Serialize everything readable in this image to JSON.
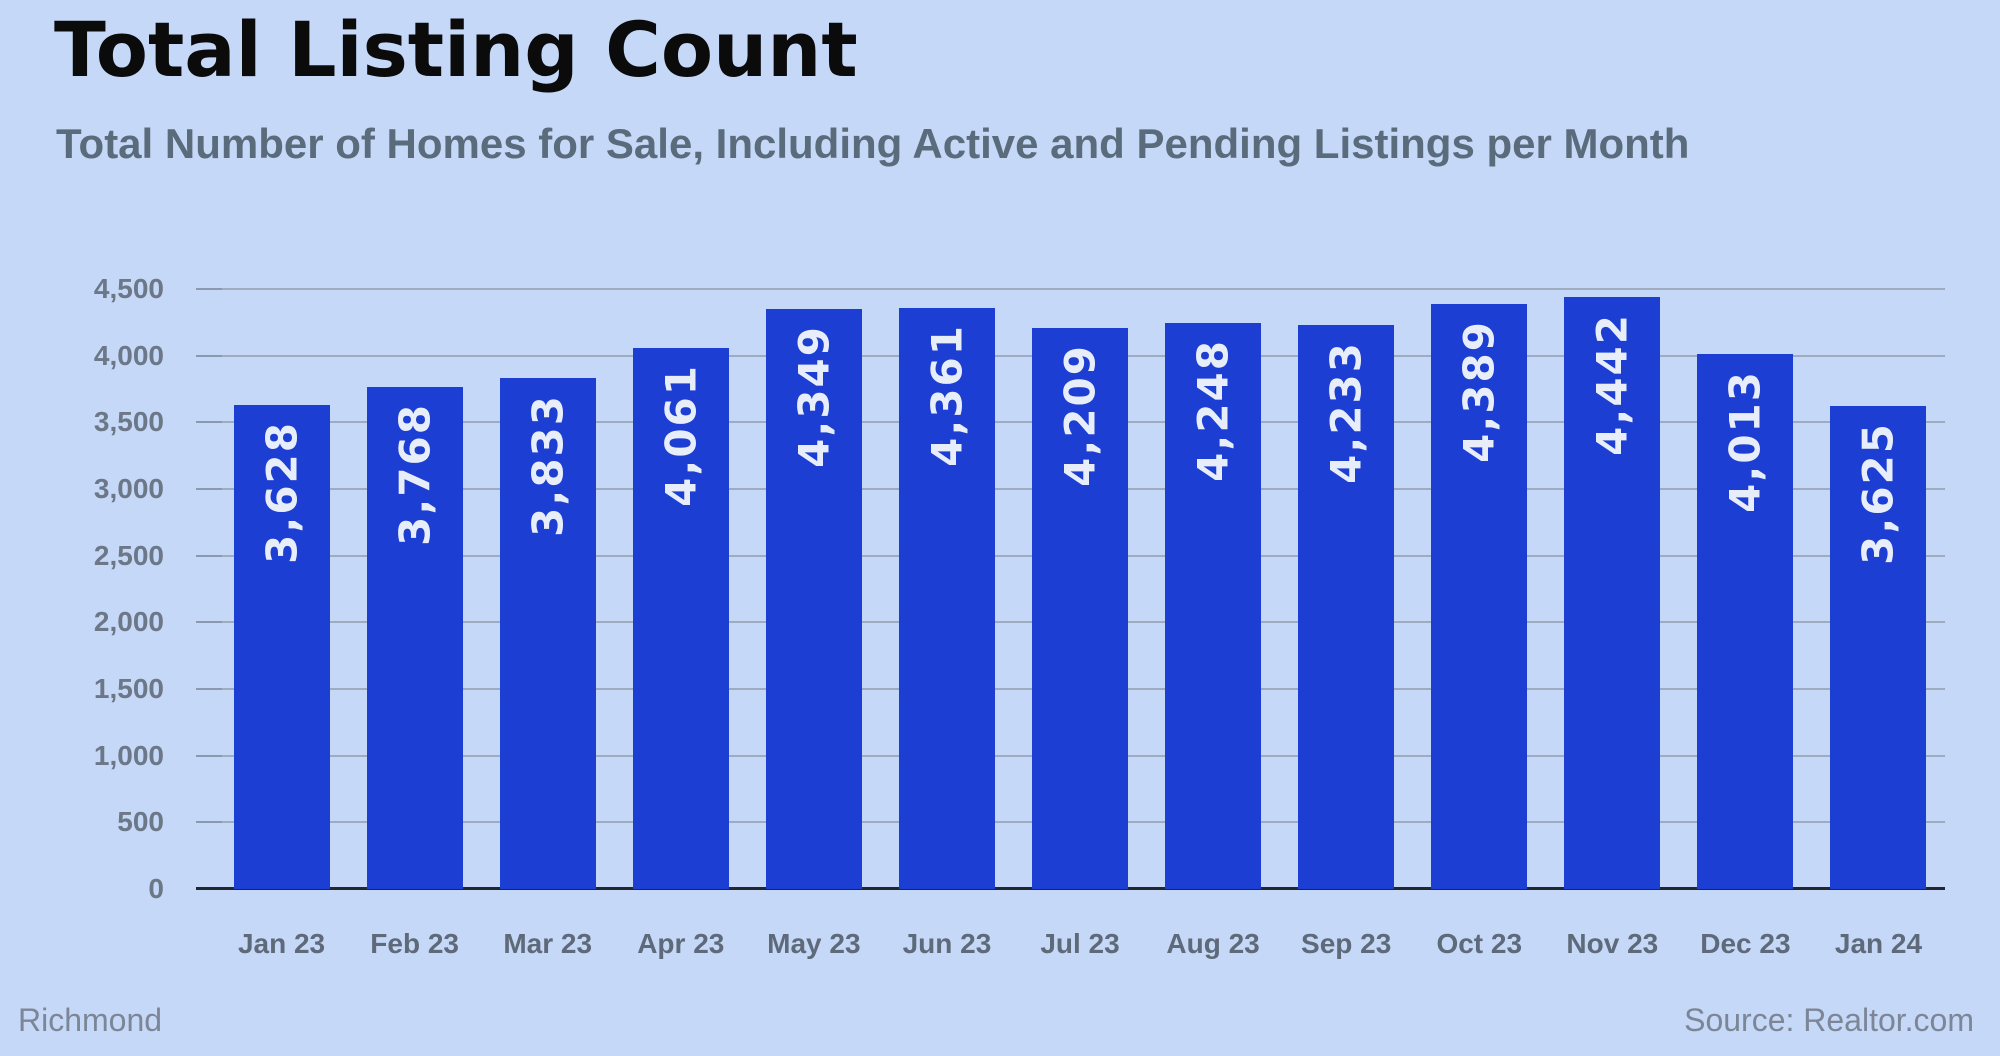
{
  "header": {
    "title": "Total Listing Count",
    "subtitle": "Total Number of Homes for Sale, Including Active and Pending Listings per Month"
  },
  "footer": {
    "location": "Richmond",
    "source": "Source: Realtor.com"
  },
  "chart_data": {
    "type": "bar",
    "title": "Total Listing Count",
    "subtitle": "Total Number of Homes for Sale, Including Active and Pending Listings per Month",
    "categories": [
      "Jan 23",
      "Feb 23",
      "Mar 23",
      "Apr 23",
      "May 23",
      "Jun 23",
      "Jul 23",
      "Aug 23",
      "Sep 23",
      "Oct 23",
      "Nov 23",
      "Dec 23",
      "Jan 24"
    ],
    "values": [
      3628,
      3768,
      3833,
      4061,
      4349,
      4361,
      4209,
      4248,
      4233,
      4389,
      4442,
      4013,
      3625
    ],
    "bar_labels": [
      "3,628",
      "3,768",
      "3,833",
      "4,061",
      "4,349",
      "4,361",
      "4,209",
      "4,248",
      "4,233",
      "4,389",
      "4,442",
      "4,013",
      "3,625"
    ],
    "xlabel": "",
    "ylabel": "",
    "ylim": [
      0,
      4500
    ],
    "ytick_step": 500,
    "ytick_labels": [
      "0",
      "500",
      "1,000",
      "1,500",
      "2,000",
      "2,500",
      "3,000",
      "3,500",
      "4,000",
      "4,500"
    ],
    "grid": true,
    "legend": false,
    "value_label_rotation": -90,
    "colors": {
      "background": "#c5d8f7",
      "bar": "#1c3ed3",
      "bar_value_text": "#e8eef9",
      "gridline": "#9fabbe",
      "tick": "#8b99af",
      "baseline": "#22262e",
      "y_label": "#6c7787",
      "x_label": "#5e6a79",
      "title": "#0b0b0c",
      "subtitle": "#5a6b7c",
      "footer": "#7c8696"
    }
  }
}
